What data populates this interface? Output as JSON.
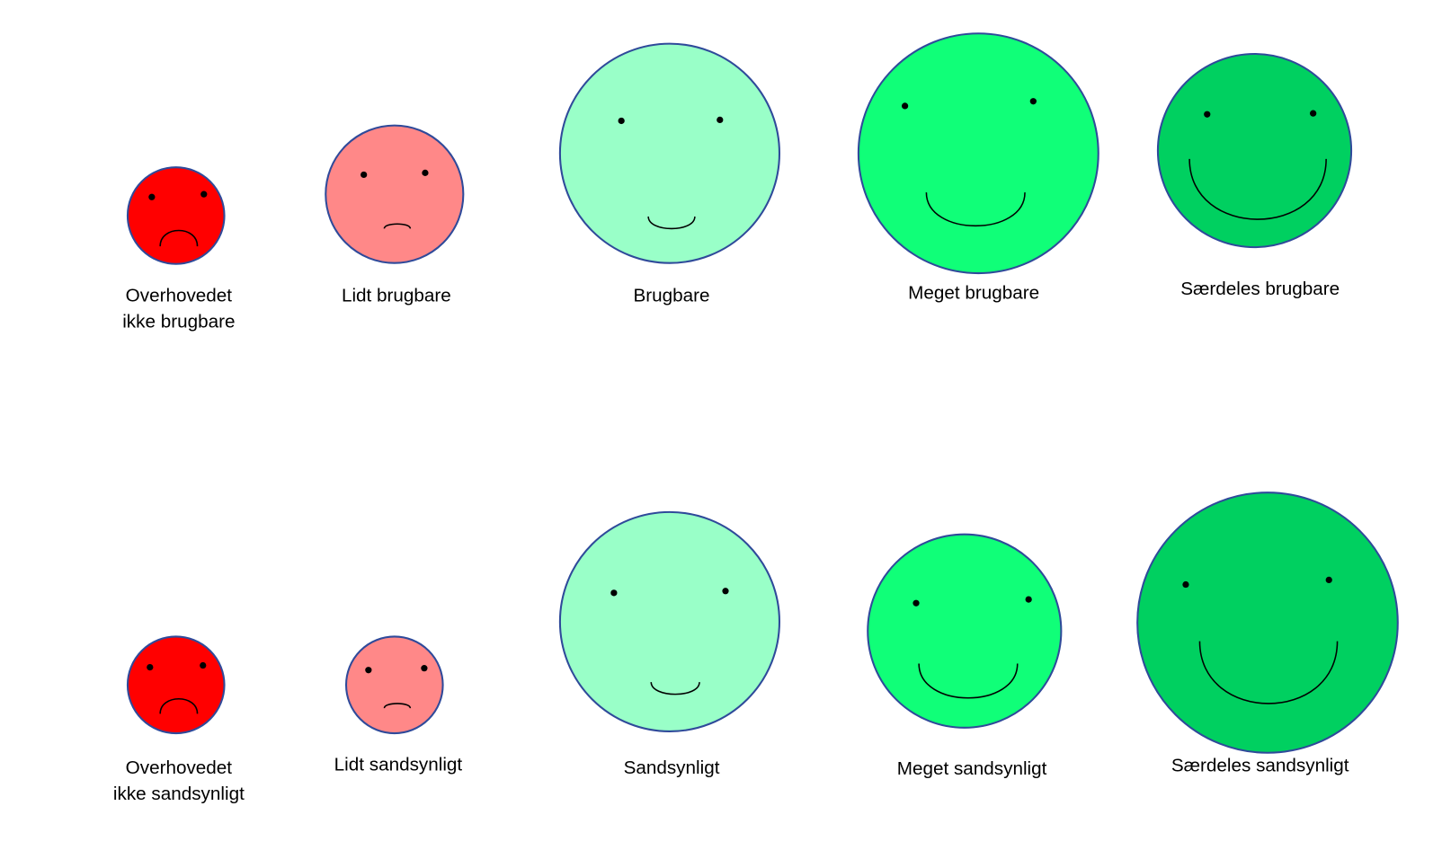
{
  "rows": [
    {
      "items": [
        {
          "label": [
            "Overhovedet",
            "ikke brugbare"
          ]
        },
        {
          "label": [
            "Lidt brugbare"
          ]
        },
        {
          "label": [
            "Brugbare"
          ]
        },
        {
          "label": [
            "Meget brugbare"
          ]
        },
        {
          "label": [
            "Særdeles brugbare"
          ]
        }
      ]
    },
    {
      "items": [
        {
          "label": [
            "Overhovedet",
            "ikke sandsynligt"
          ]
        },
        {
          "label": [
            "Lidt sandsynligt"
          ]
        },
        {
          "label": [
            "Sandsynligt"
          ]
        },
        {
          "label": [
            "Meget sandsynligt"
          ]
        },
        {
          "label": [
            "Særdeles sandsynligt"
          ]
        }
      ]
    }
  ]
}
